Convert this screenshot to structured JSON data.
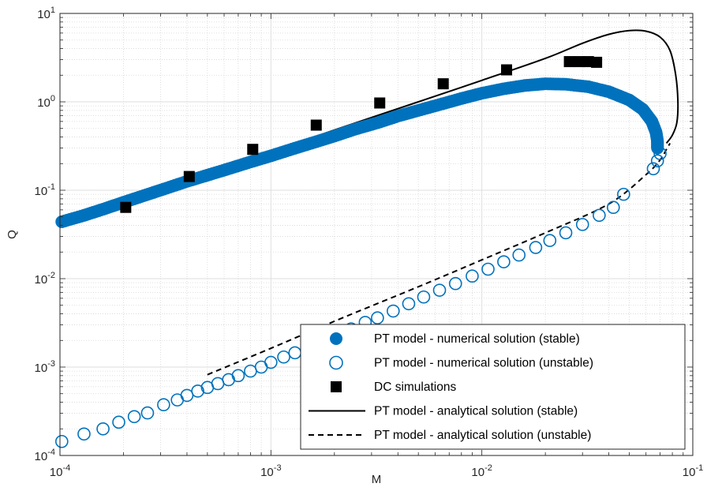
{
  "chart_data": {
    "type": "scatter",
    "title": "",
    "xlabel": "M",
    "ylabel": "Q",
    "xscale": "log",
    "yscale": "log",
    "xlim": [
      0.0001,
      0.1
    ],
    "ylim": [
      0.0001,
      10
    ],
    "grid": "on (major and minor)",
    "legend_location": "bottom-right",
    "x_ticks": [
      {
        "base": "10",
        "exp": "-4"
      },
      {
        "base": "10",
        "exp": "-3"
      },
      {
        "base": "10",
        "exp": "-2"
      },
      {
        "base": "10",
        "exp": "-1"
      }
    ],
    "y_ticks": [
      {
        "base": "10",
        "exp": "-4"
      },
      {
        "base": "10",
        "exp": "-3"
      },
      {
        "base": "10",
        "exp": "-2"
      },
      {
        "base": "10",
        "exp": "-1"
      },
      {
        "base": "10",
        "exp": "0"
      },
      {
        "base": "10",
        "exp": "1"
      }
    ],
    "colors": {
      "numerical": "#0072BD",
      "dc": "#000000",
      "analytical": "#000000"
    },
    "series": [
      {
        "name": "PT model - numerical solution (stable)",
        "style": "filled-circle",
        "color": "#0072BD",
        "points": [
          [
            0.000102,
            0.044
          ],
          [
            0.00013,
            0.052
          ],
          [
            0.00016,
            0.061
          ],
          [
            0.0002,
            0.073
          ],
          [
            0.00025,
            0.087
          ],
          [
            0.00031,
            0.103
          ],
          [
            0.0004,
            0.126
          ],
          [
            0.0005,
            0.148
          ],
          [
            0.00063,
            0.175
          ],
          [
            0.0008,
            0.209
          ],
          [
            0.001,
            0.245
          ],
          [
            0.00126,
            0.292
          ],
          [
            0.0016,
            0.348
          ],
          [
            0.002,
            0.41
          ],
          [
            0.0025,
            0.49
          ],
          [
            0.0032,
            0.58
          ],
          [
            0.004,
            0.69
          ],
          [
            0.005,
            0.8
          ],
          [
            0.0063,
            0.93
          ],
          [
            0.008,
            1.09
          ],
          [
            0.01,
            1.25
          ],
          [
            0.0126,
            1.4
          ],
          [
            0.016,
            1.53
          ],
          [
            0.02,
            1.6
          ],
          [
            0.025,
            1.58
          ],
          [
            0.032,
            1.48
          ],
          [
            0.04,
            1.3
          ],
          [
            0.05,
            1.05
          ],
          [
            0.058,
            0.82
          ],
          [
            0.064,
            0.6
          ],
          [
            0.067,
            0.45
          ],
          [
            0.068,
            0.36
          ],
          [
            0.068,
            0.3
          ]
        ]
      },
      {
        "name": "PT model - numerical solution (unstable)",
        "style": "open-circle",
        "color": "#0072BD",
        "points": [
          [
            0.000102,
            0.000144
          ],
          [
            0.00013,
            0.000175
          ],
          [
            0.00016,
            0.0002
          ],
          [
            0.00019,
            0.000238
          ],
          [
            0.000225,
            0.000275
          ],
          [
            0.00026,
            0.000303
          ],
          [
            0.00031,
            0.000375
          ],
          [
            0.00036,
            0.000425
          ],
          [
            0.0004,
            0.000478
          ],
          [
            0.00045,
            0.000535
          ],
          [
            0.0005,
            0.000588
          ],
          [
            0.00056,
            0.00065
          ],
          [
            0.00063,
            0.00072
          ],
          [
            0.0007,
            0.0008
          ],
          [
            0.0008,
            0.0009
          ],
          [
            0.0009,
            0.001
          ],
          [
            0.001,
            0.00113
          ],
          [
            0.00115,
            0.0013
          ],
          [
            0.0013,
            0.00145
          ],
          [
            0.0015,
            0.0017
          ],
          [
            0.0017,
            0.0019
          ],
          [
            0.002,
            0.0022
          ],
          [
            0.0024,
            0.0027
          ],
          [
            0.0028,
            0.0032
          ],
          [
            0.0032,
            0.0036
          ],
          [
            0.0038,
            0.0043
          ],
          [
            0.0045,
            0.0052
          ],
          [
            0.0053,
            0.0062
          ],
          [
            0.0063,
            0.0074
          ],
          [
            0.0075,
            0.0088
          ],
          [
            0.009,
            0.0107
          ],
          [
            0.0107,
            0.0128
          ],
          [
            0.0127,
            0.0155
          ],
          [
            0.015,
            0.0185
          ],
          [
            0.018,
            0.0225
          ],
          [
            0.021,
            0.027
          ],
          [
            0.025,
            0.033
          ],
          [
            0.03,
            0.041
          ],
          [
            0.036,
            0.052
          ],
          [
            0.042,
            0.064
          ],
          [
            0.047,
            0.09
          ],
          [
            0.065,
            0.175
          ],
          [
            0.068,
            0.215
          ],
          [
            0.07,
            0.26
          ]
        ]
      },
      {
        "name": "DC simulations",
        "style": "filled-square",
        "color": "#000000",
        "points": [
          [
            0.000205,
            0.064
          ],
          [
            0.00041,
            0.143
          ],
          [
            0.00082,
            0.29
          ],
          [
            0.00164,
            0.545
          ],
          [
            0.00328,
            0.97
          ],
          [
            0.00656,
            1.6
          ],
          [
            0.0131,
            2.3
          ],
          [
            0.026,
            2.85
          ],
          [
            0.029,
            2.85
          ],
          [
            0.032,
            2.85
          ],
          [
            0.035,
            2.8
          ]
        ]
      },
      {
        "name": "PT model - analytical solution (stable)",
        "style": "solid-line",
        "color": "#000000",
        "points": [
          [
            0.000102,
            0.0455
          ],
          [
            0.0002,
            0.077
          ],
          [
            0.0005,
            0.157
          ],
          [
            0.001,
            0.27
          ],
          [
            0.002,
            0.48
          ],
          [
            0.005,
            1.0
          ],
          [
            0.01,
            1.75
          ],
          [
            0.02,
            3.1
          ],
          [
            0.03,
            4.6
          ],
          [
            0.04,
            5.8
          ],
          [
            0.05,
            6.4
          ],
          [
            0.06,
            6.3
          ],
          [
            0.07,
            5.4
          ],
          [
            0.078,
            3.8
          ],
          [
            0.083,
            2.0
          ],
          [
            0.085,
            1.0
          ],
          [
            0.084,
            0.58
          ],
          [
            0.08,
            0.42
          ],
          [
            0.075,
            0.34
          ]
        ]
      },
      {
        "name": "PT model - analytical solution (unstable)",
        "style": "dashed-line",
        "color": "#000000",
        "points": [
          [
            0.0005,
            0.00082
          ],
          [
            0.001,
            0.00163
          ],
          [
            0.002,
            0.0033
          ],
          [
            0.005,
            0.0081
          ],
          [
            0.01,
            0.0163
          ],
          [
            0.02,
            0.033
          ],
          [
            0.04,
            0.07
          ],
          [
            0.06,
            0.15
          ],
          [
            0.07,
            0.22
          ],
          [
            0.075,
            0.29
          ],
          [
            0.078,
            0.34
          ]
        ]
      }
    ]
  }
}
